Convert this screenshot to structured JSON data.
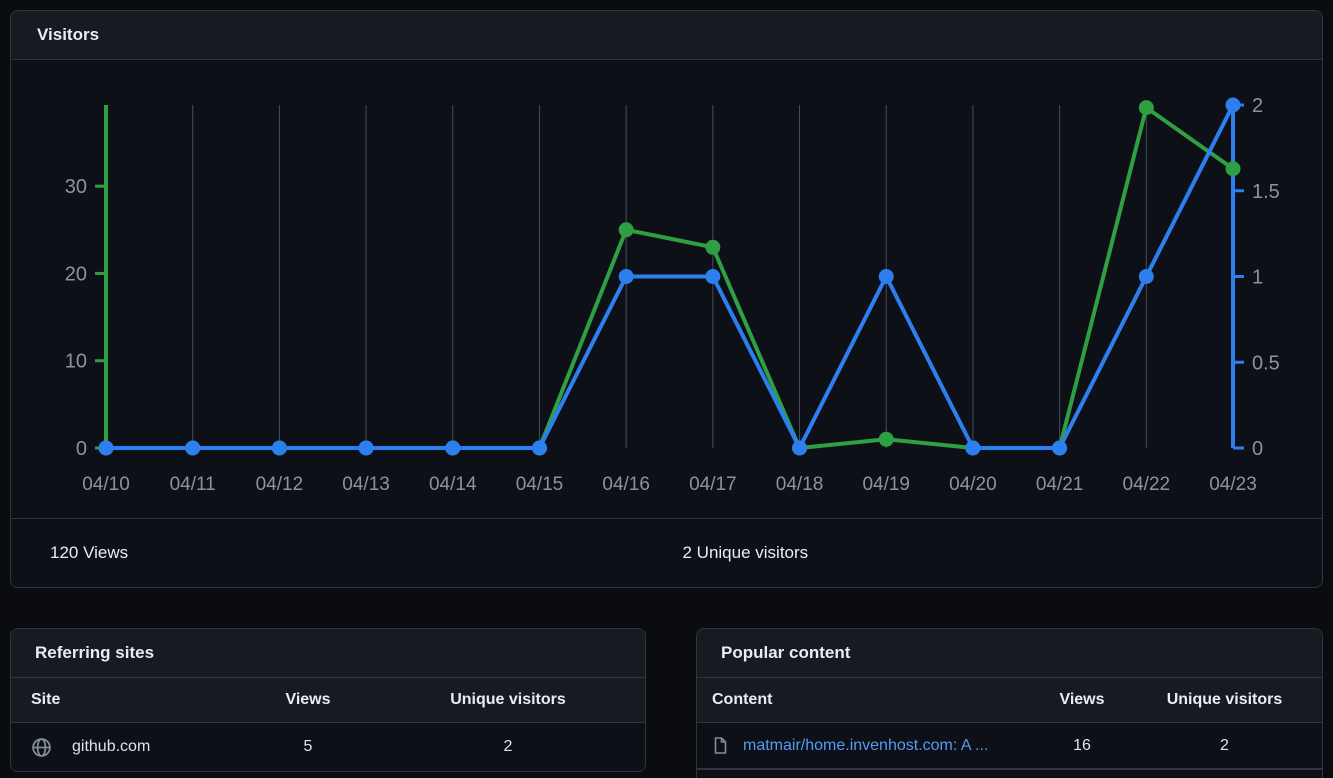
{
  "visitors_card": {
    "title": "Visitors",
    "views_total": "120 Views",
    "unique_total": "2 Unique visitors"
  },
  "chart_data": {
    "type": "line",
    "title": "Visitors",
    "x": [
      "04/10",
      "04/11",
      "04/12",
      "04/13",
      "04/14",
      "04/15",
      "04/16",
      "04/17",
      "04/18",
      "04/19",
      "04/20",
      "04/21",
      "04/22",
      "04/23"
    ],
    "series": [
      {
        "name": "Views",
        "axis": "left",
        "color": "#2ea043",
        "values": [
          0,
          0,
          0,
          0,
          0,
          0,
          25,
          23,
          0,
          1,
          0,
          0,
          39,
          32
        ]
      },
      {
        "name": "Unique visitors",
        "axis": "right",
        "color": "#2d7ff0",
        "values": [
          0,
          0,
          0,
          0,
          0,
          0,
          1,
          1,
          0,
          1,
          0,
          0,
          1,
          2
        ]
      }
    ],
    "left_axis": {
      "ticks": [
        0,
        10,
        20,
        30
      ],
      "max": 39.3,
      "color": "#2ea043"
    },
    "right_axis": {
      "ticks": [
        0,
        0.5,
        1,
        1.5,
        2
      ],
      "max": 2,
      "color": "#2d7ff0"
    },
    "grid": true,
    "grid_color": "#474e56",
    "label_color": "#8b949e",
    "legend_position": "none"
  },
  "referring_sites": {
    "title": "Referring sites",
    "columns": [
      "Site",
      "Views",
      "Unique visitors"
    ],
    "rows": [
      {
        "icon": "globe-icon",
        "site": "github.com",
        "views": "5",
        "unique": "2"
      }
    ]
  },
  "popular_content": {
    "title": "Popular content",
    "columns": [
      "Content",
      "Views",
      "Unique visitors"
    ],
    "rows": [
      {
        "icon": "file-icon",
        "content": "matmair/home.invenhost.com: A ...",
        "views": "16",
        "unique": "2"
      }
    ]
  },
  "colors": {
    "views_green": "#2ea043",
    "unique_blue": "#2d7ff0",
    "link_blue": "#539bf5"
  }
}
